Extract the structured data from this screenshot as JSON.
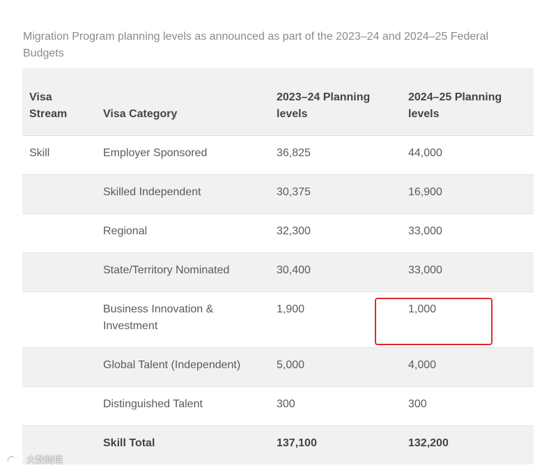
{
  "caption": "Migration Program planning levels as announced as part of the 2023–24 and 2024–25 Federal Budgets",
  "table": {
    "headers": {
      "stream": "Visa Stream",
      "category": "Visa Category",
      "y2023": "2023–24 Planning levels",
      "y2024": "2024–25 Planning levels"
    },
    "rows": [
      {
        "stream": "Skill",
        "category": "Employer Sponsored",
        "y2023": "36,825",
        "y2024": "44,000"
      },
      {
        "stream": "",
        "category": "Skilled Independent",
        "y2023": "30,375",
        "y2024": "16,900"
      },
      {
        "stream": "",
        "category": "Regional",
        "y2023": "32,300",
        "y2024": "33,000"
      },
      {
        "stream": "",
        "category": "State/Territory Nominated",
        "y2023": "30,400",
        "y2024": "33,000"
      },
      {
        "stream": "",
        "category": "Business Innovation & Investment",
        "y2023": "1,900",
        "y2024": "1,000"
      },
      {
        "stream": "",
        "category": "Global Talent (Independent)",
        "y2023": "5,000",
        "y2024": "4,000"
      },
      {
        "stream": "",
        "category": "Distinguished Talent",
        "y2023": "300",
        "y2024": "300"
      },
      {
        "stream": "",
        "category": "Skill Total",
        "y2023": "137,100",
        "y2024": "132,200"
      }
    ]
  },
  "annotation": {
    "color": "#e0282e"
  },
  "watermark": {
    "text": "大数跨境"
  }
}
